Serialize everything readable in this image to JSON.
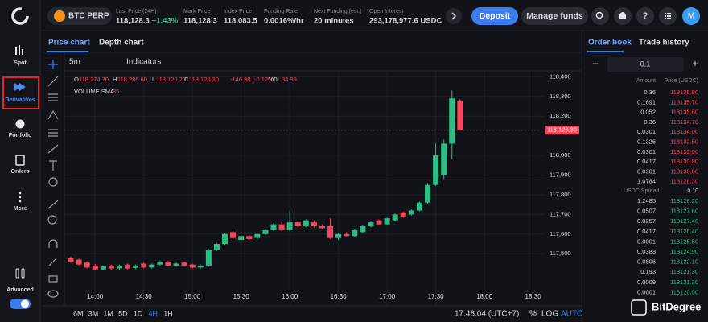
{
  "sidebar": {
    "items": [
      "Spot",
      "Derivatives",
      "Portfolio",
      "Orders",
      "More"
    ],
    "advanced": "Advanced"
  },
  "header": {
    "market": "BTC PERP",
    "stats": [
      {
        "label": "Last Price (24H)",
        "value": "118,128.3",
        "change": "+1.43%"
      },
      {
        "label": "Mark Price",
        "value": "118,128.3"
      },
      {
        "label": "Index Price",
        "value": "118,083.5"
      },
      {
        "label": "Funding Rate",
        "value": "0.0016%/hr"
      },
      {
        "label": "Next Funding (est.)",
        "value": "20 minutes"
      },
      {
        "label": "Open Interest",
        "value": "293,178,977.6 USDC"
      }
    ],
    "deposit": "Deposit",
    "manage": "Manage funds",
    "avatar": "M"
  },
  "chart": {
    "tabs": [
      "Price chart",
      "Depth chart"
    ],
    "interval": "5m",
    "indicators": "Indicators",
    "ohlc": [
      {
        "key": "O",
        "value": "118,274.70"
      },
      {
        "key": "H",
        "value": "118,286.60"
      },
      {
        "key": "L",
        "value": "118,126.20"
      },
      {
        "key": "C",
        "value": "118,128.30"
      }
    ],
    "change": "-146.30 (-0.12%)",
    "vol_key": "VOL",
    "vol": "34.99",
    "volume_label": "VOLUME SMA",
    "volume_sma": "35",
    "price_label": "118,128.30",
    "ylim": [
      117235,
      118430
    ],
    "yticks": [
      {
        "value": 118400,
        "label": "118,400"
      },
      {
        "value": 118300,
        "label": "118,300"
      },
      {
        "value": 118200,
        "label": "118,200"
      },
      {
        "value": 118000,
        "label": "118,000"
      },
      {
        "value": 117900,
        "label": "117,900"
      },
      {
        "value": 117800,
        "label": "117,800"
      },
      {
        "value": 117700,
        "label": "117,700"
      },
      {
        "value": 117600,
        "label": "117,600"
      },
      {
        "value": 117500,
        "label": "117,500"
      }
    ],
    "xticks": [
      "14:00",
      "14:30",
      "15:00",
      "15:30",
      "16:00",
      "16:30",
      "17:00",
      "17:30",
      "18:00",
      "18:30"
    ],
    "candles": [
      [
        117480,
        117485,
        117455,
        117460
      ],
      [
        117470,
        117478,
        117440,
        117445
      ],
      [
        117455,
        117460,
        117425,
        117430
      ],
      [
        117440,
        117448,
        117415,
        117420
      ],
      [
        117420,
        117440,
        117415,
        117435
      ],
      [
        117440,
        117445,
        117420,
        117425
      ],
      [
        117425,
        117445,
        117420,
        117440
      ],
      [
        117445,
        117450,
        117420,
        117425
      ],
      [
        117428,
        117445,
        117422,
        117440
      ],
      [
        117450,
        117455,
        117425,
        117430
      ],
      [
        117430,
        117450,
        117425,
        117445
      ],
      [
        117445,
        117465,
        117440,
        117460
      ],
      [
        117460,
        117465,
        117435,
        117440
      ],
      [
        117440,
        117455,
        117435,
        117450
      ],
      [
        117455,
        117460,
        117435,
        117440
      ],
      [
        117445,
        117450,
        117425,
        117430
      ],
      [
        117430,
        117445,
        117425,
        117440
      ],
      [
        117440,
        117525,
        117435,
        117520
      ],
      [
        117520,
        117555,
        117515,
        117550
      ],
      [
        117550,
        117605,
        117545,
        117600
      ],
      [
        117610,
        117615,
        117575,
        117580
      ],
      [
        117570,
        117595,
        117565,
        117590
      ],
      [
        117590,
        117595,
        117570,
        117575
      ],
      [
        117580,
        117605,
        117575,
        117600
      ],
      [
        117600,
        117625,
        117595,
        117620
      ],
      [
        117620,
        117655,
        117615,
        117650
      ],
      [
        117650,
        117660,
        117615,
        117620
      ],
      [
        117620,
        117720,
        117615,
        117660
      ],
      [
        117660,
        117665,
        117635,
        117640
      ],
      [
        117640,
        117675,
        117635,
        117670
      ],
      [
        117660,
        117670,
        117635,
        117640
      ],
      [
        117640,
        117650,
        117625,
        117630
      ],
      [
        117640,
        117680,
        117575,
        117580
      ],
      [
        117580,
        117605,
        117570,
        117600
      ],
      [
        117600,
        117610,
        117585,
        117590
      ],
      [
        117590,
        117625,
        117585,
        117620
      ],
      [
        117610,
        117645,
        117605,
        117640
      ],
      [
        117640,
        117665,
        117635,
        117660
      ],
      [
        117670,
        117675,
        117645,
        117650
      ],
      [
        117650,
        117685,
        117645,
        117680
      ],
      [
        117670,
        117705,
        117665,
        117700
      ],
      [
        117710,
        117715,
        117685,
        117690
      ],
      [
        117700,
        117725,
        117695,
        117720
      ],
      [
        117720,
        117765,
        117715,
        117760
      ],
      [
        117760,
        117860,
        117755,
        117850
      ],
      [
        117850,
        118060,
        117845,
        118000
      ],
      [
        117900,
        118080,
        117880,
        118060
      ],
      [
        118060,
        118330,
        117980,
        118290
      ],
      [
        118274.7,
        118286.6,
        118126.2,
        118128.3
      ]
    ],
    "up_color": "#2ebd85",
    "down_color": "#f6465d",
    "ranges": [
      "6M",
      "3M",
      "1M",
      "5D",
      "1D",
      "4H",
      "1H"
    ],
    "clock": "17:48:04 (UTC+7)",
    "percent": "%",
    "log": "LOG",
    "auto": "AUTO"
  },
  "orderbook": {
    "tabs": [
      "Order book",
      "Trade history"
    ],
    "step": "0.1",
    "columns": [
      "Amount",
      "Price (USDC)"
    ],
    "asks": [
      [
        "0.36",
        "118135.80"
      ],
      [
        "0.1691",
        "118135.70"
      ],
      [
        "0.052",
        "118135.60"
      ],
      [
        "0.36",
        "118134.70"
      ],
      [
        "0.0301",
        "118134.00"
      ],
      [
        "0.1326",
        "118132.50"
      ],
      [
        "0.0301",
        "118132.00"
      ],
      [
        "0.0417",
        "118130.80"
      ],
      [
        "0.0301",
        "118130.00"
      ],
      [
        "1.0784",
        "118128.30"
      ]
    ],
    "spread_label": "USDC Spread",
    "spread": "0.10",
    "bids": [
      [
        "1.2485",
        "118128.20"
      ],
      [
        "0.0507",
        "118127.60"
      ],
      [
        "0.0257",
        "118127.40"
      ],
      [
        "0.0417",
        "118126.40"
      ],
      [
        "0.0001",
        "118125.50"
      ],
      [
        "0.0383",
        "118124.90"
      ],
      [
        "0.0806",
        "118122.10"
      ],
      [
        "0.193",
        "118121.30"
      ],
      [
        "0.0009",
        "118121.30"
      ],
      [
        "0.0001",
        "118120.90"
      ]
    ]
  },
  "watermark": "BitDegree"
}
